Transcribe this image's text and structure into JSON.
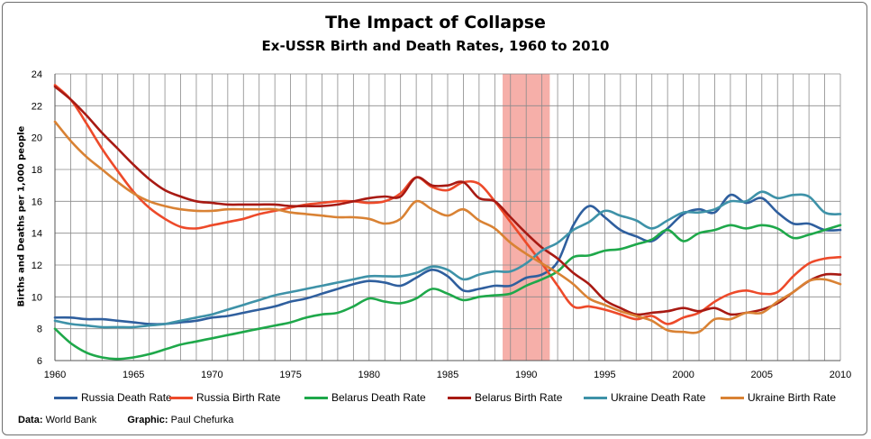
{
  "chart_data": {
    "type": "line",
    "title": "The Impact of Collapse",
    "subtitle": "Ex-USSR Birth and Death Rates, 1960 to 2010",
    "ylabel": "Births and Deaths per 1,000 people",
    "xlabel": "",
    "xlim": [
      1960,
      2010
    ],
    "ylim": [
      6,
      24
    ],
    "x_ticks": [
      1960,
      1965,
      1970,
      1975,
      1980,
      1985,
      1990,
      1995,
      2000,
      2005,
      2010
    ],
    "y_ticks": [
      6,
      8,
      10,
      12,
      14,
      16,
      18,
      20,
      22,
      24
    ],
    "grid": true,
    "legend_position": "bottom",
    "highlight_span": {
      "from": 1988.5,
      "to": 1991.5,
      "color": "#f4a19a"
    },
    "x": [
      1960,
      1961,
      1962,
      1963,
      1964,
      1965,
      1966,
      1967,
      1968,
      1969,
      1970,
      1971,
      1972,
      1973,
      1974,
      1975,
      1976,
      1977,
      1978,
      1979,
      1980,
      1981,
      1982,
      1983,
      1984,
      1985,
      1986,
      1987,
      1988,
      1989,
      1990,
      1991,
      1992,
      1993,
      1994,
      1995,
      1996,
      1997,
      1998,
      1999,
      2000,
      2001,
      2002,
      2003,
      2004,
      2005,
      2006,
      2007,
      2008,
      2009,
      2010
    ],
    "series": [
      {
        "name": "Russia Death Rate",
        "color": "#2f5f9e",
        "values": [
          8.7,
          8.7,
          8.6,
          8.6,
          8.5,
          8.4,
          8.3,
          8.3,
          8.4,
          8.5,
          8.7,
          8.8,
          9.0,
          9.2,
          9.4,
          9.7,
          9.9,
          10.2,
          10.5,
          10.8,
          11.0,
          10.9,
          10.7,
          11.2,
          11.7,
          11.3,
          10.4,
          10.5,
          10.7,
          10.7,
          11.2,
          11.4,
          12.2,
          14.5,
          15.7,
          15.0,
          14.2,
          13.8,
          13.5,
          14.3,
          15.2,
          15.5,
          15.3,
          16.4,
          15.9,
          16.2,
          15.3,
          14.6,
          14.6,
          14.2,
          14.2
        ]
      },
      {
        "name": "Russia Birth Rate",
        "color": "#ed4a2a",
        "values": [
          23.3,
          22.4,
          20.9,
          19.3,
          17.9,
          16.6,
          15.6,
          14.9,
          14.4,
          14.3,
          14.5,
          14.7,
          14.9,
          15.2,
          15.4,
          15.6,
          15.8,
          15.9,
          16.0,
          16.0,
          15.9,
          16.0,
          16.5,
          17.5,
          16.9,
          16.7,
          17.2,
          17.1,
          16.0,
          14.7,
          13.4,
          12.1,
          10.7,
          9.4,
          9.4,
          9.2,
          8.9,
          8.6,
          8.8,
          8.3,
          8.7,
          9.0,
          9.7,
          10.2,
          10.4,
          10.2,
          10.3,
          11.3,
          12.1,
          12.4,
          12.5
        ]
      },
      {
        "name": "Belarus Death Rate",
        "color": "#1ea84a",
        "values": [
          8.0,
          7.1,
          6.5,
          6.2,
          6.1,
          6.2,
          6.4,
          6.7,
          7.0,
          7.2,
          7.4,
          7.6,
          7.8,
          8.0,
          8.2,
          8.4,
          8.7,
          8.9,
          9.0,
          9.4,
          9.9,
          9.7,
          9.6,
          9.9,
          10.5,
          10.2,
          9.8,
          10.0,
          10.1,
          10.2,
          10.7,
          11.1,
          11.6,
          12.5,
          12.6,
          12.9,
          13.0,
          13.3,
          13.6,
          14.2,
          13.5,
          14.0,
          14.2,
          14.5,
          14.3,
          14.5,
          14.3,
          13.7,
          13.9,
          14.2,
          14.5
        ]
      },
      {
        "name": "Belarus Birth Rate",
        "color": "#a81a13",
        "values": [
          23.2,
          22.4,
          21.4,
          20.3,
          19.3,
          18.3,
          17.4,
          16.7,
          16.3,
          16.0,
          15.9,
          15.8,
          15.8,
          15.8,
          15.8,
          15.7,
          15.7,
          15.7,
          15.8,
          16.0,
          16.2,
          16.3,
          16.3,
          17.5,
          17.0,
          17.0,
          17.2,
          16.2,
          16.0,
          15.0,
          14.0,
          13.1,
          12.4,
          11.5,
          10.8,
          9.8,
          9.3,
          8.9,
          9.0,
          9.1,
          9.3,
          9.1,
          9.3,
          8.9,
          9.0,
          9.2,
          9.6,
          10.3,
          11.0,
          11.4,
          11.4
        ]
      },
      {
        "name": "Ukraine Death Rate",
        "color": "#3e92a8",
        "values": [
          8.5,
          8.3,
          8.2,
          8.1,
          8.1,
          8.1,
          8.2,
          8.3,
          8.5,
          8.7,
          8.9,
          9.2,
          9.5,
          9.8,
          10.1,
          10.3,
          10.5,
          10.7,
          10.9,
          11.1,
          11.3,
          11.3,
          11.3,
          11.5,
          11.9,
          11.7,
          11.1,
          11.4,
          11.6,
          11.6,
          12.1,
          12.9,
          13.4,
          14.2,
          14.7,
          15.4,
          15.1,
          14.8,
          14.3,
          14.8,
          15.3,
          15.3,
          15.5,
          16.0,
          16.0,
          16.6,
          16.2,
          16.4,
          16.3,
          15.3,
          15.2
        ]
      },
      {
        "name": "Ukraine Birth Rate",
        "color": "#d98234",
        "values": [
          21.0,
          19.8,
          18.8,
          18.0,
          17.2,
          16.5,
          16.0,
          15.7,
          15.5,
          15.4,
          15.4,
          15.5,
          15.5,
          15.5,
          15.5,
          15.3,
          15.2,
          15.1,
          15.0,
          15.0,
          14.9,
          14.6,
          14.9,
          16.0,
          15.5,
          15.1,
          15.5,
          14.8,
          14.3,
          13.4,
          12.7,
          12.1,
          11.5,
          10.8,
          9.9,
          9.5,
          9.1,
          8.8,
          8.5,
          7.9,
          7.8,
          7.8,
          8.6,
          8.6,
          9.0,
          9.0,
          9.7,
          10.3,
          11.0,
          11.1,
          10.8
        ]
      }
    ]
  },
  "legend": {
    "items": [
      "Russia Death Rate",
      "Russia Birth Rate",
      "Belarus Death Rate",
      "Belarus Birth Rate",
      "Ukraine Death Rate",
      "Ukraine Birth Rate"
    ]
  },
  "footer": {
    "data_label": "Data:",
    "data_value": "World Bank",
    "graphic_label": "Graphic:",
    "graphic_value": "Paul Chefurka"
  }
}
